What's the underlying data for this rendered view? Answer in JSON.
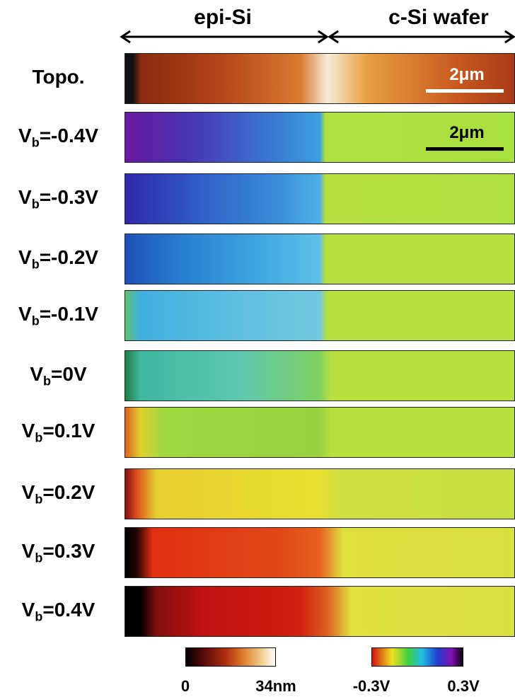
{
  "header": {
    "left": "epi-Si",
    "right": "c-Si wafer"
  },
  "rows": [
    {
      "label": "Topo."
    },
    {
      "symbol": "V",
      "subscript": "b",
      "value": "=-0.4V"
    },
    {
      "symbol": "V",
      "subscript": "b",
      "value": "=-0.3V"
    },
    {
      "symbol": "V",
      "subscript": "b",
      "value": "=-0.2V"
    },
    {
      "symbol": "V",
      "subscript": "b",
      "value": "=-0.1V"
    },
    {
      "symbol": "V",
      "subscript": "b",
      "value": "=0V"
    },
    {
      "symbol": "V",
      "subscript": "b",
      "value": "=0.1V"
    },
    {
      "symbol": "V",
      "subscript": "b",
      "value": "=0.2V"
    },
    {
      "symbol": "V",
      "subscript": "b",
      "value": "=0.3V"
    },
    {
      "symbol": "V",
      "subscript": "b",
      "value": "=0.4V"
    }
  ],
  "scale_bars": [
    "2μm",
    "2μm"
  ],
  "colorbars": [
    {
      "min_label": "0",
      "max_label": "34nm"
    },
    {
      "min_label": "-0.3V",
      "max_label": "0.3V"
    }
  ]
}
